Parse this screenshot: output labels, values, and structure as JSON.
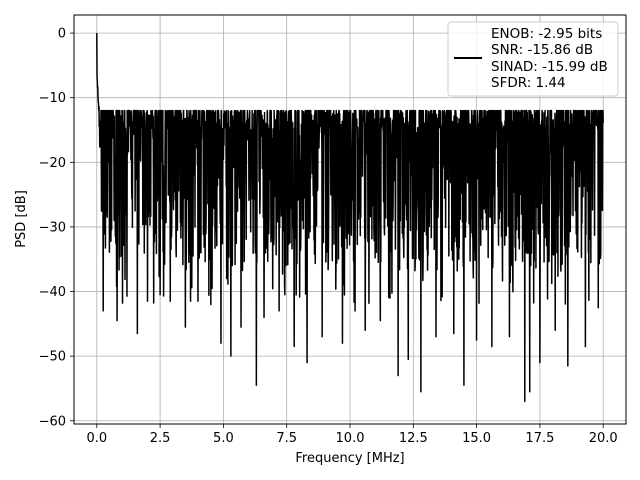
{
  "chart_data": {
    "type": "line",
    "title": "",
    "xlabel": "Frequency [MHz]",
    "ylabel": "PSD [dB]",
    "xlim": [
      -0.9,
      20.9
    ],
    "ylim": [
      -60.5,
      2.8
    ],
    "xticks": [
      0.0,
      2.5,
      5.0,
      7.5,
      10.0,
      12.5,
      15.0,
      17.5,
      20.0
    ],
    "xtick_labels": [
      "0.0",
      "2.5",
      "5.0",
      "7.5",
      "10.0",
      "12.5",
      "15.0",
      "17.5",
      "20.0"
    ],
    "yticks": [
      0,
      -10,
      -20,
      -30,
      -40,
      -50,
      -60
    ],
    "ytick_labels": [
      "0",
      "−10",
      "−20",
      "−30",
      "−40",
      "−50",
      "−60"
    ],
    "grid": true,
    "legend_position": "top-right",
    "legend_entries": [
      "ENOB: -2.95 bits",
      "SNR: -15.86 dB",
      "SINAD: -15.99 dB",
      "SFDR: 1.44"
    ],
    "series": [
      {
        "color": "#000000",
        "x_start": 0.0,
        "x_end": 20.0,
        "points": 2048,
        "dc_peak_db": 0.0,
        "noise_floor_top_db": -13.5,
        "noise_floor_bottom_db": -36.0,
        "deep_nulls": [
          [
            0.25,
            -43
          ],
          [
            0.8,
            -44.5
          ],
          [
            1.6,
            -46.5
          ],
          [
            2.0,
            -41.5
          ],
          [
            2.5,
            -40.5
          ],
          [
            2.9,
            -41.5
          ],
          [
            3.5,
            -45.5
          ],
          [
            3.7,
            -41.5
          ],
          [
            4.0,
            -41.5
          ],
          [
            4.5,
            -42
          ],
          [
            4.9,
            -48
          ],
          [
            5.3,
            -50
          ],
          [
            5.7,
            -45.5
          ],
          [
            6.3,
            -54.5
          ],
          [
            6.6,
            -44
          ],
          [
            7.2,
            -43
          ],
          [
            7.8,
            -48.5
          ],
          [
            8.3,
            -51
          ],
          [
            8.9,
            -47
          ],
          [
            9.7,
            -48
          ],
          [
            10.2,
            -43
          ],
          [
            10.6,
            -46
          ],
          [
            11.2,
            -44.5
          ],
          [
            11.9,
            -53
          ],
          [
            12.3,
            -50.5
          ],
          [
            12.8,
            -55.5
          ],
          [
            13.4,
            -47
          ],
          [
            14.1,
            -46.5
          ],
          [
            14.5,
            -54.5
          ],
          [
            15.0,
            -47.5
          ],
          [
            15.6,
            -48.5
          ],
          [
            16.3,
            -47
          ],
          [
            16.9,
            -57
          ],
          [
            17.1,
            -55.5
          ],
          [
            17.5,
            -51
          ],
          [
            18.1,
            -46
          ],
          [
            18.6,
            -51.5
          ],
          [
            19.3,
            -48.5
          ],
          [
            19.8,
            -42.5
          ]
        ]
      }
    ]
  }
}
